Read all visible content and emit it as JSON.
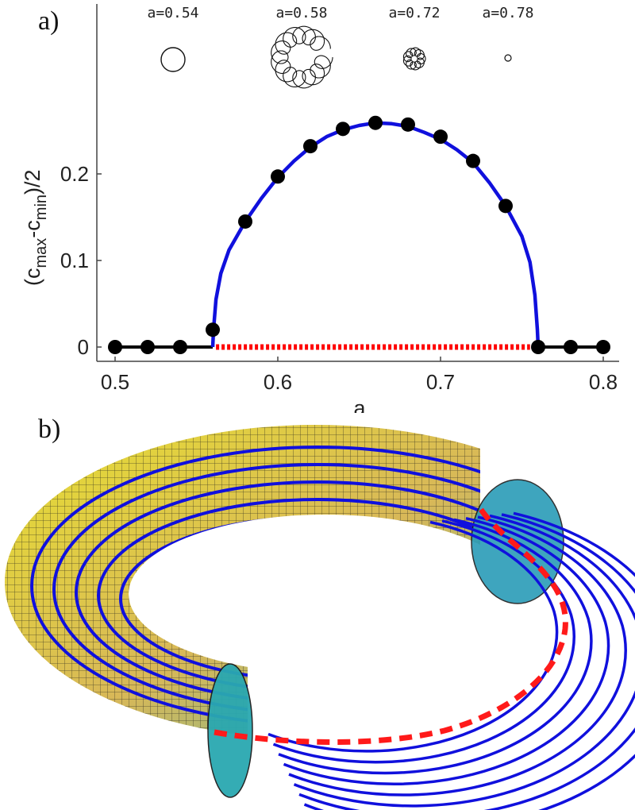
{
  "panels": {
    "a_label": "a)",
    "b_label": "b)"
  },
  "chart_data": {
    "type": "line",
    "title": "",
    "xlabel": "a",
    "ylabel_parts": {
      "open": "(c",
      "sub1": "max",
      "mid": "-c",
      "sub2": "min",
      "close": ")/2"
    },
    "xlim": [
      0.5,
      0.8
    ],
    "ylim": [
      0,
      0.3
    ],
    "xticks": [
      0.5,
      0.6,
      0.7,
      0.8
    ],
    "xtick_labels": [
      "0.5",
      "0.6",
      "0.7",
      "0.8"
    ],
    "yticks": [
      0,
      0.1,
      0.2
    ],
    "ytick_labels": [
      "0",
      "0.1",
      "0.2"
    ],
    "grid": false,
    "series": [
      {
        "kind": "stable-zero",
        "color": "#000000",
        "segments": [
          [
            [
              0.5,
              0.0
            ],
            [
              0.56,
              0.0
            ]
          ],
          [
            [
              0.76,
              0.0
            ],
            [
              0.8,
              0.0
            ]
          ]
        ]
      },
      {
        "kind": "unstable-zero",
        "color": "#ff0000",
        "style": "dotted",
        "points": [
          [
            0.562,
            0.0
          ],
          [
            0.755,
            0.0
          ]
        ]
      },
      {
        "kind": "oscillation-amplitude",
        "color": "#1010dd",
        "points": [
          [
            0.56,
            0.0
          ],
          [
            0.5605,
            0.02
          ],
          [
            0.562,
            0.055
          ],
          [
            0.565,
            0.085
          ],
          [
            0.57,
            0.112
          ],
          [
            0.58,
            0.145
          ],
          [
            0.59,
            0.172
          ],
          [
            0.6,
            0.196
          ],
          [
            0.61,
            0.215
          ],
          [
            0.62,
            0.231
          ],
          [
            0.63,
            0.243
          ],
          [
            0.64,
            0.251
          ],
          [
            0.65,
            0.256
          ],
          [
            0.66,
            0.259
          ],
          [
            0.67,
            0.258
          ],
          [
            0.68,
            0.255
          ],
          [
            0.69,
            0.248
          ],
          [
            0.7,
            0.24
          ],
          [
            0.71,
            0.228
          ],
          [
            0.72,
            0.213
          ],
          [
            0.73,
            0.19
          ],
          [
            0.74,
            0.163
          ],
          [
            0.75,
            0.128
          ],
          [
            0.755,
            0.098
          ],
          [
            0.758,
            0.06
          ],
          [
            0.7595,
            0.02
          ],
          [
            0.76,
            0.0
          ]
        ]
      },
      {
        "kind": "simulation-points",
        "color": "#000000",
        "x": [
          0.5,
          0.52,
          0.54,
          0.56,
          0.58,
          0.6,
          0.62,
          0.64,
          0.66,
          0.68,
          0.7,
          0.72,
          0.74,
          0.76,
          0.78,
          0.8
        ],
        "y": [
          0.0,
          0.0,
          0.0,
          0.02,
          0.145,
          0.197,
          0.232,
          0.252,
          0.259,
          0.257,
          0.243,
          0.215,
          0.163,
          0.0,
          0.0,
          0.0
        ]
      }
    ],
    "insets": [
      {
        "label": "a=0.54",
        "shape": "circle"
      },
      {
        "label": "a=0.58",
        "shape": "large-epicycle"
      },
      {
        "label": "a=0.72",
        "shape": "small-epicycle"
      },
      {
        "label": "a=0.78",
        "shape": "tiny-circle"
      }
    ]
  },
  "torus": {
    "surface_colors": [
      "#e8e030",
      "#d8b858",
      "#7cb890",
      "#2ab8b8"
    ],
    "mesh_color": "#1a1a1a",
    "orbit_color": "#1010dd",
    "dashed_cycle_color": "#ff1a1a"
  }
}
